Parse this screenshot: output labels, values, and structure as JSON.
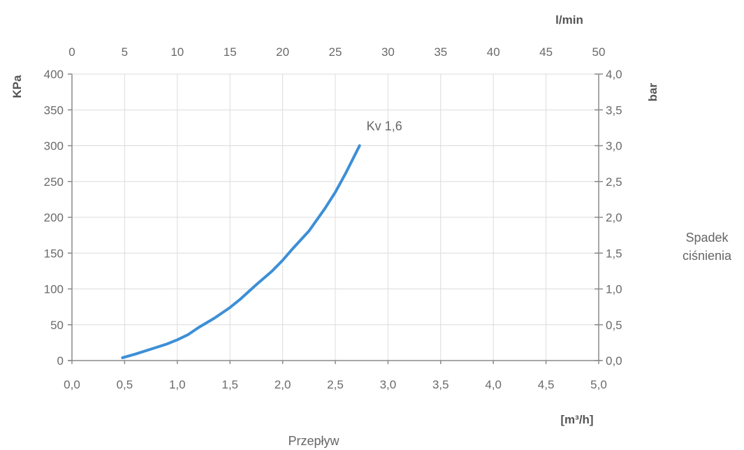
{
  "chart_data": {
    "type": "line",
    "x_bottom": {
      "label": "[m³/h]",
      "range": [
        0,
        5
      ],
      "ticks": [
        "0,0",
        "0,5",
        "1,0",
        "1,5",
        "2,0",
        "2,5",
        "3,0",
        "3,5",
        "4,0",
        "4,5",
        "5,0"
      ]
    },
    "x_top": {
      "label": "l/min",
      "range": [
        0,
        50
      ],
      "ticks": [
        "0",
        "5",
        "10",
        "15",
        "20",
        "25",
        "30",
        "35",
        "40",
        "45",
        "50"
      ]
    },
    "y_left": {
      "label": "KPa",
      "range": [
        0,
        400
      ],
      "ticks": [
        "0",
        "50",
        "100",
        "150",
        "200",
        "250",
        "300",
        "350",
        "400"
      ]
    },
    "y_right": {
      "label": "bar",
      "range": [
        0,
        4
      ],
      "ticks": [
        "0,0",
        "0,5",
        "1,0",
        "1,5",
        "2,0",
        "2,5",
        "3,0",
        "3,5",
        "4,0"
      ]
    },
    "xlabel": "Przepływ",
    "ylabel_right_text": [
      "Spadek",
      "ciśnienia"
    ],
    "grid": true,
    "series": [
      {
        "name": "Kv 1,6",
        "color": "#3d8fd6",
        "x": [
          0.48,
          0.6,
          0.75,
          0.9,
          1.0,
          1.1,
          1.2,
          1.35,
          1.5,
          1.6,
          1.75,
          1.9,
          2.0,
          2.1,
          2.25,
          2.4,
          2.5,
          2.6,
          2.73
        ],
        "y": [
          4,
          9,
          16,
          23,
          29,
          36,
          46,
          59,
          74,
          86,
          106,
          125,
          140,
          157,
          181,
          212,
          235,
          262,
          300
        ]
      }
    ]
  }
}
